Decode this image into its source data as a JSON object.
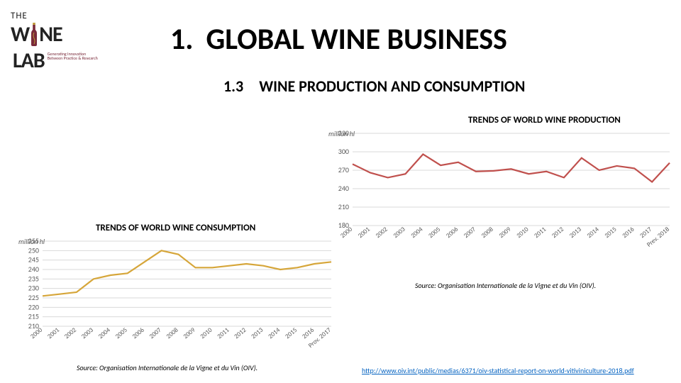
{
  "logo": {
    "top": "THE",
    "word1a": "W",
    "word1b": "NE",
    "word2": "LAB",
    "sub1": "Generating Innovation",
    "sub2": "Between Practice & Research",
    "bottle_color": "#7a2a3a",
    "cork_color": "#c09a3a"
  },
  "header": {
    "number": "1.",
    "title": "GLOBAL WINE BUSINESS"
  },
  "subheader": {
    "number": "1.3",
    "title": "WINE PRODUCTION AND CONSUMPTION"
  },
  "production_chart": {
    "title": "TRENDS OF WORLD WINE PRODUCTION",
    "type": "line",
    "ylabel": "million hl",
    "y_ticks": [
      180,
      210,
      240,
      270,
      300,
      330
    ],
    "ylim": [
      180,
      330
    ],
    "x_labels": [
      "2000",
      "2001",
      "2002",
      "2003",
      "2004",
      "2005",
      "2006",
      "2007",
      "2008",
      "2009",
      "2010",
      "2011",
      "2012",
      "2013",
      "2014",
      "2015",
      "2016",
      "2017",
      "Prev. 2018"
    ],
    "values": [
      280,
      266,
      258,
      264,
      296,
      278,
      283,
      268,
      269,
      272,
      264,
      268,
      258,
      290,
      270,
      277,
      273,
      251,
      282
    ],
    "line_color": "#c0504d",
    "line_width": 2.2,
    "grid_color": "#d9d9d9",
    "background_color": "#ffffff",
    "tick_fontsize": 10,
    "label_fontsize": 10
  },
  "consumption_chart": {
    "title": "TRENDS OF WORLD WINE CONSUMPTION",
    "type": "line",
    "ylabel": "million hl",
    "y_ticks": [
      210,
      215,
      220,
      225,
      230,
      235,
      240,
      245,
      250,
      255
    ],
    "ylim": [
      210,
      255
    ],
    "x_labels": [
      "2000",
      "2001",
      "2002",
      "2003",
      "2004",
      "2005",
      "2006",
      "2007",
      "2008",
      "2009",
      "2010",
      "2011",
      "2012",
      "2013",
      "2014",
      "2015",
      "2016",
      "Prov. 2017"
    ],
    "values": [
      226,
      227,
      228,
      235,
      237,
      238,
      244,
      250,
      248,
      241,
      241,
      242,
      243,
      242,
      240,
      241,
      243,
      244
    ],
    "line_color": "#d6a63a",
    "line_width": 2.2,
    "grid_color": "#d9d9d9",
    "background_color": "#ffffff",
    "tick_fontsize": 10,
    "label_fontsize": 10
  },
  "sources": {
    "production": "Source: Organisation Internationale de la Vigne et du Vin (OIV).",
    "consumption": "Source: Organisation Internationale de la Vigne et du Vin (OIV)."
  },
  "link": {
    "text": "http://www.oiv.int/public/medias/6371/oiv-statistical-report-on-world-vitiviniculture-2018.pdf"
  }
}
